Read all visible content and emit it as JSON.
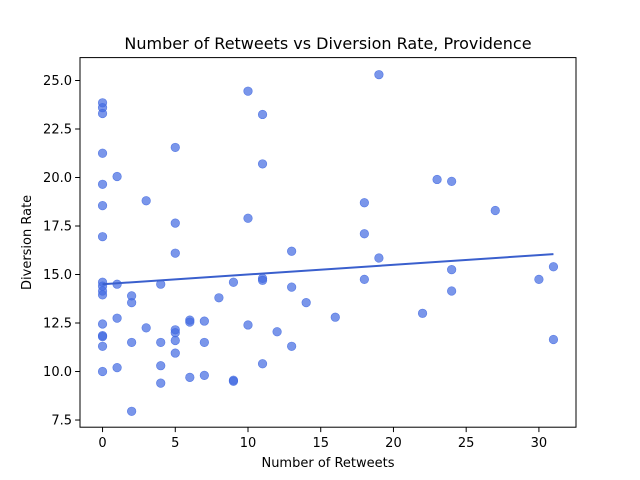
{
  "chart_data": {
    "type": "scatter",
    "title": "Number of Retweets vs Diversion Rate, Providence",
    "xlabel": "Number of Retweets",
    "ylabel": "Diversion Rate",
    "xlim": [
      -1.55,
      32.55
    ],
    "ylim": [
      7.13,
      26.18
    ],
    "xticks": [
      0,
      5,
      10,
      15,
      20,
      25,
      30
    ],
    "yticks": [
      7.5,
      10.0,
      12.5,
      15.0,
      17.5,
      20.0,
      22.5,
      25.0
    ],
    "ytick_labels": [
      "7.5",
      "10.0",
      "12.5",
      "15.0",
      "17.5",
      "20.0",
      "22.5",
      "25.0"
    ],
    "grid": false,
    "legend": "none",
    "point_color": "#4169e1",
    "line_color": "#3a5fcd",
    "points": [
      {
        "x": 0,
        "y": 23.85
      },
      {
        "x": 0,
        "y": 23.6
      },
      {
        "x": 0,
        "y": 23.3
      },
      {
        "x": 0,
        "y": 21.25
      },
      {
        "x": 0,
        "y": 19.65
      },
      {
        "x": 0,
        "y": 18.55
      },
      {
        "x": 0,
        "y": 16.95
      },
      {
        "x": 0,
        "y": 14.6
      },
      {
        "x": 0,
        "y": 14.4
      },
      {
        "x": 0,
        "y": 14.15
      },
      {
        "x": 0,
        "y": 13.95
      },
      {
        "x": 0,
        "y": 12.45
      },
      {
        "x": 0,
        "y": 11.85
      },
      {
        "x": 0,
        "y": 11.8
      },
      {
        "x": 0,
        "y": 11.3
      },
      {
        "x": 0,
        "y": 10.0
      },
      {
        "x": 1,
        "y": 20.05
      },
      {
        "x": 1,
        "y": 14.5
      },
      {
        "x": 1,
        "y": 12.75
      },
      {
        "x": 1,
        "y": 10.2
      },
      {
        "x": 2,
        "y": 13.9
      },
      {
        "x": 2,
        "y": 13.55
      },
      {
        "x": 2,
        "y": 11.5
      },
      {
        "x": 2,
        "y": 7.95
      },
      {
        "x": 3,
        "y": 18.8
      },
      {
        "x": 3,
        "y": 12.25
      },
      {
        "x": 4,
        "y": 14.5
      },
      {
        "x": 4,
        "y": 11.5
      },
      {
        "x": 4,
        "y": 10.3
      },
      {
        "x": 4,
        "y": 9.4
      },
      {
        "x": 5,
        "y": 21.55
      },
      {
        "x": 5,
        "y": 17.65
      },
      {
        "x": 5,
        "y": 16.1
      },
      {
        "x": 5,
        "y": 12.15
      },
      {
        "x": 5,
        "y": 12.0
      },
      {
        "x": 5,
        "y": 11.6
      },
      {
        "x": 5,
        "y": 10.95
      },
      {
        "x": 6,
        "y": 12.65
      },
      {
        "x": 6,
        "y": 12.55
      },
      {
        "x": 6,
        "y": 9.7
      },
      {
        "x": 7,
        "y": 12.6
      },
      {
        "x": 7,
        "y": 11.5
      },
      {
        "x": 7,
        "y": 9.8
      },
      {
        "x": 8,
        "y": 13.8
      },
      {
        "x": 9,
        "y": 14.6
      },
      {
        "x": 9,
        "y": 9.55
      },
      {
        "x": 9,
        "y": 9.5
      },
      {
        "x": 10,
        "y": 24.45
      },
      {
        "x": 10,
        "y": 17.9
      },
      {
        "x": 10,
        "y": 12.4
      },
      {
        "x": 11,
        "y": 23.25
      },
      {
        "x": 11,
        "y": 20.7
      },
      {
        "x": 11,
        "y": 14.8
      },
      {
        "x": 11,
        "y": 14.7
      },
      {
        "x": 11,
        "y": 10.4
      },
      {
        "x": 12,
        "y": 12.05
      },
      {
        "x": 13,
        "y": 16.2
      },
      {
        "x": 13,
        "y": 14.35
      },
      {
        "x": 13,
        "y": 11.3
      },
      {
        "x": 14,
        "y": 13.55
      },
      {
        "x": 16,
        "y": 12.8
      },
      {
        "x": 18,
        "y": 18.7
      },
      {
        "x": 18,
        "y": 17.1
      },
      {
        "x": 18,
        "y": 14.75
      },
      {
        "x": 19,
        "y": 25.3
      },
      {
        "x": 19,
        "y": 15.85
      },
      {
        "x": 22,
        "y": 13.0
      },
      {
        "x": 23,
        "y": 19.9
      },
      {
        "x": 24,
        "y": 19.8
      },
      {
        "x": 24,
        "y": 15.25
      },
      {
        "x": 24,
        "y": 14.15
      },
      {
        "x": 27,
        "y": 18.3
      },
      {
        "x": 30,
        "y": 14.75
      },
      {
        "x": 31,
        "y": 15.4
      },
      {
        "x": 31,
        "y": 11.65
      }
    ],
    "trendline": {
      "x": [
        0,
        31
      ],
      "y": [
        14.5,
        16.05
      ]
    }
  }
}
